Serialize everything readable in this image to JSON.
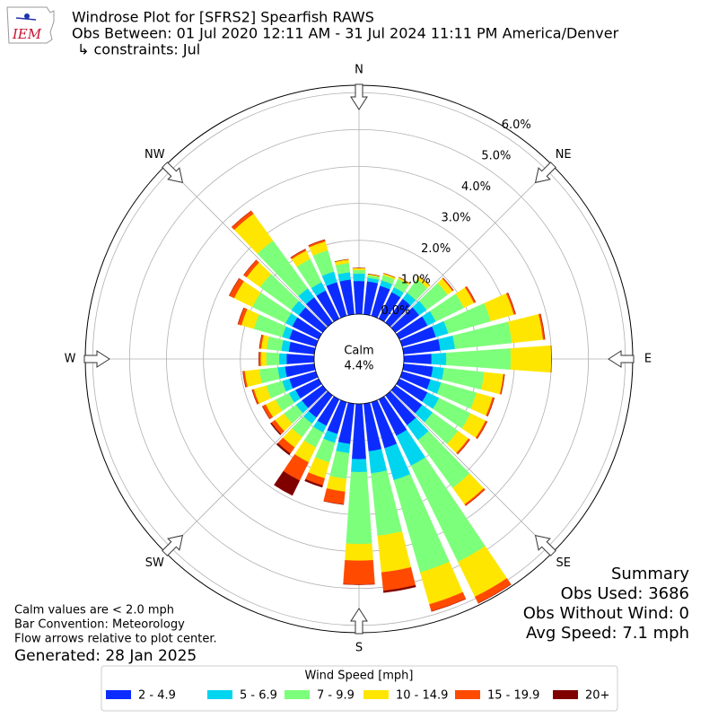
{
  "logo": "IEM",
  "chart_data": {
    "type": "windrose",
    "title": "Windrose Plot for [SFRS2] Spearfish RAWS",
    "subtitle": [
      "Obs Between: 01 Jul 2020 12:11 AM - 31 Jul 2024 11:11 PM America/Denver",
      "↳ constraints: Jul"
    ],
    "directions": [
      10,
      20,
      30,
      40,
      50,
      60,
      70,
      80,
      90,
      100,
      110,
      120,
      130,
      140,
      150,
      160,
      170,
      180,
      190,
      200,
      210,
      220,
      230,
      240,
      250,
      260,
      270,
      280,
      290,
      300,
      310,
      320,
      330,
      340,
      350,
      360
    ],
    "series": [
      {
        "name": "2 - 4.9",
        "color": "#0c2cff",
        "values": [
          0.9,
          0.85,
          0.8,
          0.8,
          0.8,
          0.85,
          0.95,
          1.0,
          0.75,
          0.8,
          0.8,
          0.85,
          0.9,
          1.0,
          1.1,
          1.3,
          1.3,
          1.5,
          1.1,
          0.9,
          0.8,
          0.75,
          0.7,
          0.7,
          0.75,
          0.8,
          0.75,
          0.7,
          0.75,
          0.8,
          0.8,
          0.85,
          0.85,
          0.95,
          0.95,
          0.9
        ]
      },
      {
        "name": "5 - 6.9",
        "color": "#00d5f0",
        "values": [
          0.1,
          0.15,
          0.15,
          0.2,
          0.25,
          0.25,
          0.35,
          0.4,
          0.4,
          0.3,
          0.3,
          0.35,
          0.35,
          0.5,
          0.9,
          0.9,
          0.6,
          0.35,
          0.25,
          0.25,
          0.2,
          0.2,
          0.2,
          0.2,
          0.2,
          0.2,
          0.2,
          0.2,
          0.2,
          0.2,
          0.25,
          0.3,
          0.25,
          0.3,
          0.2,
          0.2
        ]
      },
      {
        "name": "7 - 9.9",
        "color": "#7cff7a",
        "values": [
          0.07,
          0.15,
          0.25,
          0.45,
          0.7,
          0.85,
          1.2,
          1.55,
          1.75,
          1.1,
          1.0,
          0.95,
          0.85,
          1.6,
          2.9,
          2.6,
          1.7,
          1.95,
          0.7,
          0.55,
          0.45,
          0.45,
          0.4,
          0.4,
          0.45,
          0.5,
          0.35,
          0.4,
          0.8,
          1.0,
          1.05,
          1.6,
          0.7,
          0.6,
          0.25,
          0.1
        ]
      },
      {
        "name": "10 - 14.9",
        "color": "#ffe600",
        "values": [
          0.03,
          0.05,
          0.05,
          0.1,
          0.17,
          0.3,
          0.65,
          0.85,
          1.1,
          0.52,
          0.45,
          0.45,
          0.35,
          0.55,
          1.05,
          0.9,
          1.0,
          0.45,
          0.35,
          0.45,
          0.45,
          0.35,
          0.3,
          0.3,
          0.35,
          0.4,
          0.15,
          0.15,
          0.35,
          0.55,
          0.45,
          0.9,
          0.25,
          0.25,
          0.1,
          0.05
        ]
      },
      {
        "name": "15 - 19.9",
        "color": "#ff4a00",
        "values": [
          0,
          0,
          0,
          0,
          0.03,
          0.05,
          0.05,
          0.05,
          0,
          0.03,
          0.05,
          0.05,
          0.05,
          0.05,
          0.2,
          0.2,
          0.5,
          0.65,
          0.35,
          0.2,
          0.55,
          0.2,
          0.12,
          0.1,
          0.05,
          0.05,
          0.05,
          0.05,
          0.1,
          0.15,
          0.1,
          0.1,
          0.05,
          0.05,
          0,
          0
        ]
      },
      {
        "name": "20+",
        "color": "#800000",
        "values": [
          0,
          0,
          0,
          0,
          0,
          0,
          0,
          0,
          0,
          0,
          0,
          0,
          0,
          0,
          0,
          0,
          0.05,
          0,
          0,
          0.05,
          0.45,
          0.05,
          0.03,
          0,
          0,
          0,
          0,
          0,
          0,
          0,
          0,
          0,
          0,
          0,
          0,
          0
        ]
      }
    ],
    "ylim": [
      0,
      6.2
    ],
    "yticks": [
      {
        "value": 0,
        "label": "0.0%"
      },
      {
        "value": 1,
        "label": "1.0%"
      },
      {
        "value": 2,
        "label": "2.0%"
      },
      {
        "value": 3,
        "label": "3.0%"
      },
      {
        "value": 4,
        "label": "4.0%"
      },
      {
        "value": 5,
        "label": "5.0%"
      },
      {
        "value": 6,
        "label": "6.0%"
      }
    ],
    "xticks": [
      {
        "value": 0,
        "label": "N"
      },
      {
        "value": 45,
        "label": "NE"
      },
      {
        "value": 90,
        "label": "E"
      },
      {
        "value": 135,
        "label": "SE"
      },
      {
        "value": 180,
        "label": "S"
      },
      {
        "value": 225,
        "label": "SW"
      },
      {
        "value": 270,
        "label": "W"
      },
      {
        "value": 315,
        "label": "NW"
      }
    ],
    "calm": {
      "name": "Calm",
      "value": 4.4,
      "label": "4.4%"
    },
    "legend_title": "Wind Speed [mph]",
    "summary": [
      "Summary",
      "Obs Used: 3686",
      "Obs Without Wind: 0",
      "Avg Speed: 7.1 mph"
    ],
    "notes": [
      "Calm values are < 2.0 mph",
      "Bar Convention: Meteorology",
      "Flow arrows relative to plot center."
    ],
    "generated": "Generated: 28 Jan 2025",
    "grid": true
  }
}
